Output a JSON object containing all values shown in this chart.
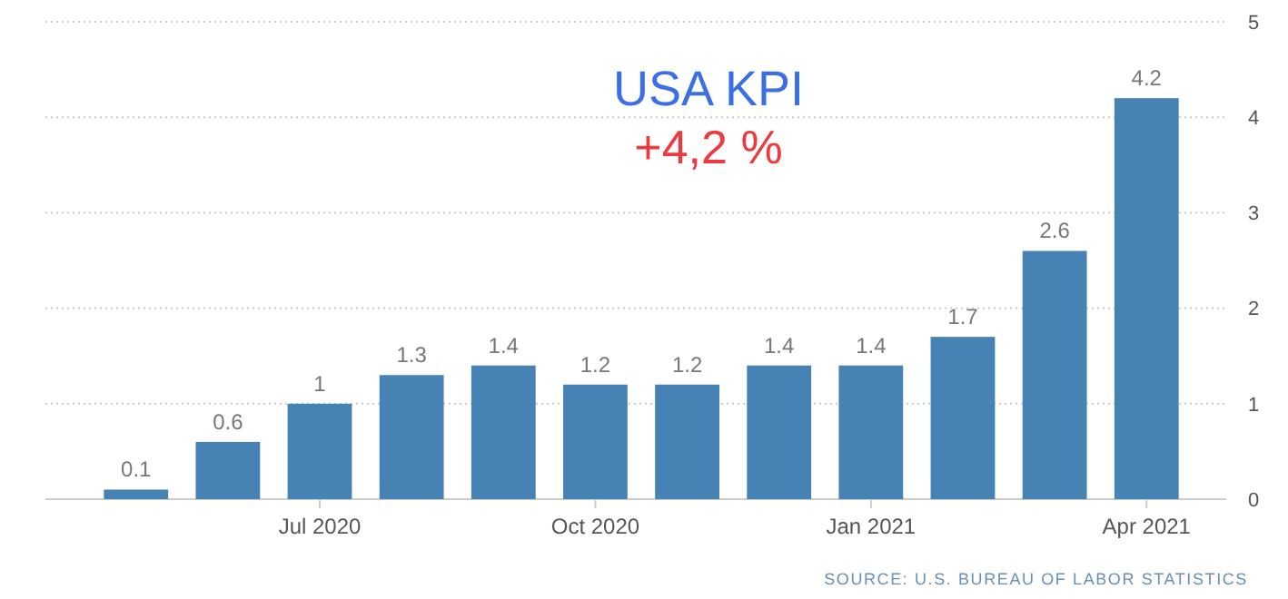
{
  "chart_data": {
    "type": "bar",
    "title": "USA KPI",
    "subtitle": "+4,2 %",
    "categories": [
      null,
      null,
      "Jul 2020",
      null,
      null,
      "Oct 2020",
      null,
      null,
      "Jan 2021",
      null,
      null,
      "Apr 2021"
    ],
    "values": [
      0.1,
      0.6,
      1,
      1.3,
      1.4,
      1.2,
      1.2,
      1.4,
      1.4,
      1.7,
      2.6,
      4.2
    ],
    "color": "#4682b4",
    "ylim": [
      0,
      5
    ],
    "yticks": [
      0,
      1,
      2,
      3,
      4,
      5
    ],
    "grid": "y",
    "data_labels": true,
    "annotations": [
      "SOURCE: U.S. BUREAU OF LABOR STATISTICS"
    ]
  }
}
